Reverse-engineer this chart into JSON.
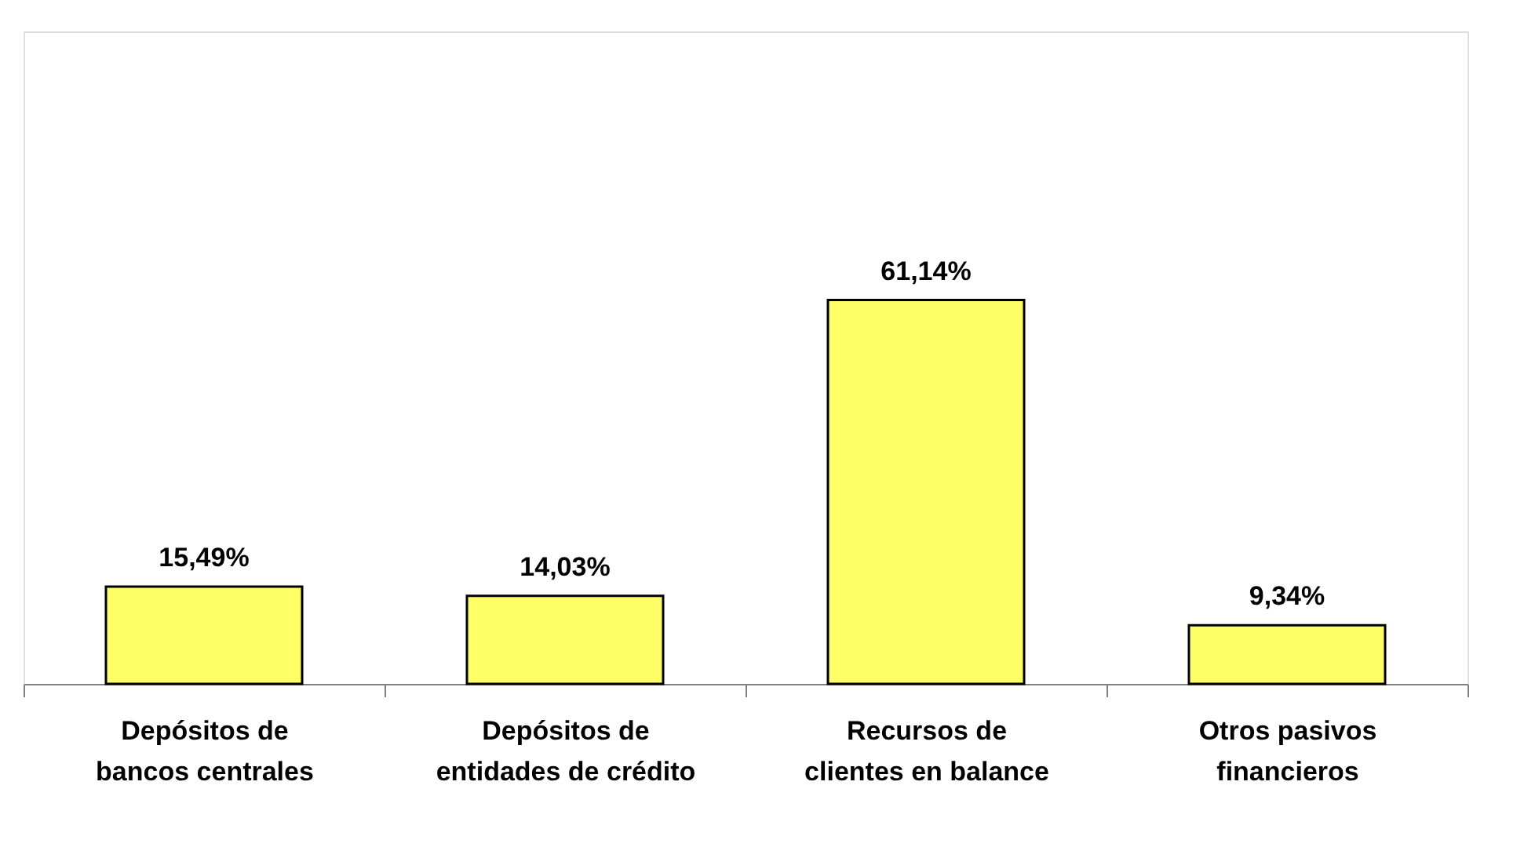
{
  "chart_data": {
    "type": "bar",
    "categories": [
      "Depósitos de bancos centrales",
      "Depósitos de entidades de crédito",
      "Recursos de clientes en balance",
      "Otros pasivos financieros"
    ],
    "values": [
      15.49,
      14.03,
      61.14,
      9.34
    ],
    "value_labels": [
      "15,49%",
      "14,03%",
      "61,14%",
      "9,34%"
    ],
    "color": "#ffff66",
    "grid": false
  }
}
